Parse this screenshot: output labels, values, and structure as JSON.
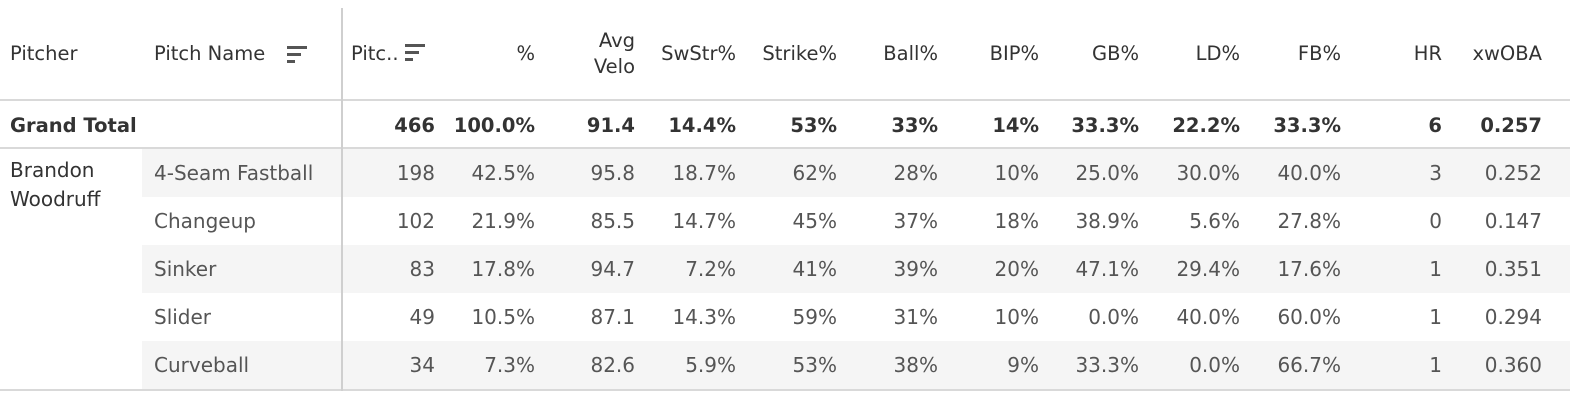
{
  "columns": {
    "pitcher": "Pitcher",
    "pitch_name": "Pitch Name",
    "pitches": "Pitc..",
    "pct": "%",
    "avg_velo_1": "Avg",
    "avg_velo_2": "Velo",
    "swstr": "SwStr%",
    "strike": "Strike%",
    "ball": "Ball%",
    "bip": "BIP%",
    "gb": "GB%",
    "ld": "LD%",
    "fb": "FB%",
    "hr": "HR",
    "xwoba": "xwOBA"
  },
  "grand_total": {
    "label": "Grand Total",
    "pitches": "466",
    "pct": "100.0%",
    "avg_velo": "91.4",
    "swstr": "14.4%",
    "strike": "53%",
    "ball": "33%",
    "bip": "14%",
    "gb": "33.3%",
    "ld": "22.2%",
    "fb": "33.3%",
    "hr": "6",
    "xwoba": "0.257"
  },
  "pitcher_name": "Brandon Woodruff",
  "rows": [
    {
      "pitch": "4-Seam Fastball",
      "pitches": "198",
      "pct": "42.5%",
      "avg_velo": "95.8",
      "swstr": "18.7%",
      "strike": "62%",
      "ball": "28%",
      "bip": "10%",
      "gb": "25.0%",
      "ld": "30.0%",
      "fb": "40.0%",
      "hr": "3",
      "xwoba": "0.252"
    },
    {
      "pitch": "Changeup",
      "pitches": "102",
      "pct": "21.9%",
      "avg_velo": "85.5",
      "swstr": "14.7%",
      "strike": "45%",
      "ball": "37%",
      "bip": "18%",
      "gb": "38.9%",
      "ld": "5.6%",
      "fb": "27.8%",
      "hr": "0",
      "xwoba": "0.147"
    },
    {
      "pitch": "Sinker",
      "pitches": "83",
      "pct": "17.8%",
      "avg_velo": "94.7",
      "swstr": "7.2%",
      "strike": "41%",
      "ball": "39%",
      "bip": "20%",
      "gb": "47.1%",
      "ld": "29.4%",
      "fb": "17.6%",
      "hr": "1",
      "xwoba": "0.351"
    },
    {
      "pitch": "Slider",
      "pitches": "49",
      "pct": "10.5%",
      "avg_velo": "87.1",
      "swstr": "14.3%",
      "strike": "59%",
      "ball": "31%",
      "bip": "10%",
      "gb": "0.0%",
      "ld": "40.0%",
      "fb": "60.0%",
      "hr": "1",
      "xwoba": "0.294"
    },
    {
      "pitch": "Curveball",
      "pitches": "34",
      "pct": "7.3%",
      "avg_velo": "82.6",
      "swstr": "5.9%",
      "strike": "53%",
      "ball": "38%",
      "bip": "9%",
      "gb": "33.3%",
      "ld": "0.0%",
      "fb": "66.7%",
      "hr": "1",
      "xwoba": "0.360"
    }
  ],
  "icons": {
    "pitch_name_sort": "sort-descending-icon",
    "pitches_sort": "sort-descending-icon"
  },
  "colors": {
    "band": "#f5f5f5",
    "text": "#333333",
    "detail_text": "#555555"
  }
}
